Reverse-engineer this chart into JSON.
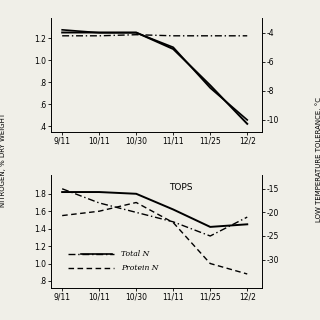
{
  "x_labels": [
    "9/11",
    "10/11",
    "10/30",
    "11/11",
    "11/25",
    "12/2"
  ],
  "x_positions": [
    0,
    1,
    2,
    3,
    4,
    5
  ],
  "top_panel": {
    "total_n_x": [
      0,
      1,
      2,
      3,
      4,
      5
    ],
    "total_n_y": [
      1.22,
      1.22,
      1.23,
      1.22,
      1.22,
      1.22
    ],
    "protein_n_x": [
      0,
      1,
      2,
      3,
      4,
      5
    ],
    "protein_n_y": [
      1.25,
      1.25,
      1.25,
      1.1,
      0.77,
      0.42
    ],
    "temp_x": [
      0,
      1,
      2,
      3,
      4,
      5
    ],
    "temp_y": [
      -3.8,
      -4.0,
      -4.0,
      -5.0,
      -7.8,
      -10.0
    ],
    "ylim_left": [
      0.35,
      1.38
    ],
    "ylim_right": [
      -10.8,
      -3.0
    ],
    "yticks_left": [
      0.4,
      0.6,
      0.8,
      1.0,
      1.2
    ],
    "yticks_right": [
      -10,
      -8,
      -6,
      -4
    ],
    "ytick_labels_left": [
      ".4",
      ".6",
      ".8",
      "1.0",
      "1.2"
    ]
  },
  "bottom_panel": {
    "total_n_x": [
      0,
      1,
      2,
      3,
      4,
      5
    ],
    "total_n_y": [
      1.82,
      1.82,
      1.8,
      1.62,
      1.42,
      1.45
    ],
    "protein_n_x": [
      0,
      1,
      2,
      3,
      4,
      5
    ],
    "protein_n_y": [
      1.55,
      1.6,
      1.7,
      1.47,
      1.0,
      0.88
    ],
    "temp_x": [
      0,
      1,
      2,
      3,
      4,
      5
    ],
    "temp_y": [
      -15,
      -18,
      -20,
      -22,
      -25,
      -21
    ],
    "ylim_left": [
      0.72,
      2.02
    ],
    "ylim_right": [
      -36,
      -12
    ],
    "yticks_left": [
      0.8,
      1.0,
      1.2,
      1.4,
      1.6,
      1.8
    ],
    "yticks_right": [
      -15,
      -20,
      -25,
      -30
    ],
    "ytick_labels_left": [
      ".8",
      "1.0",
      "1.2",
      "1.4",
      "1.6",
      "1.8"
    ],
    "label": "TOPS"
  },
  "bg_color": "#f0efe8",
  "ylabel_left": "NITROGEN, % DRY WEIGHT",
  "ylabel_right": "LOW TEMPERATURE TOLERANCE, °C"
}
